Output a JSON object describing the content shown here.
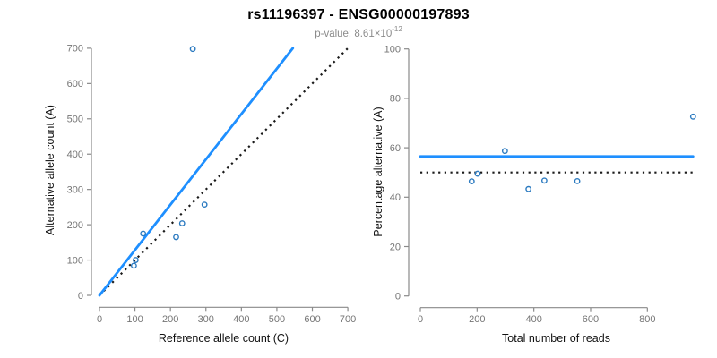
{
  "header": {
    "title": "rs11196397 - ENSG00000197893",
    "subtitle_prefix": "p-value: 8.61×10",
    "subtitle_exponent": "-12"
  },
  "colors": {
    "fit_line": "#1e8fff",
    "point": "#2b7ac0",
    "null_line": "#1a1a1a",
    "axis": "#8a8a8a",
    "tick_label": "#757575",
    "axis_title": "#111111",
    "subtitle": "#8a8a8a"
  },
  "chart_data": [
    {
      "type": "scatter",
      "panel": "allele-counts",
      "xlabel": "Reference allele count (C)",
      "ylabel": "Alternative allele count (A)",
      "xlim": [
        0,
        700
      ],
      "ylim": [
        0,
        700
      ],
      "xticks": [
        0,
        100,
        200,
        300,
        400,
        500,
        600,
        700
      ],
      "yticks": [
        0,
        100,
        200,
        300,
        400,
        500,
        600,
        700
      ],
      "grid": false,
      "legend": "none",
      "points": [
        [
          97,
          84
        ],
        [
          102,
          100
        ],
        [
          123,
          175
        ],
        [
          216,
          165
        ],
        [
          233,
          204
        ],
        [
          296,
          257
        ],
        [
          263,
          698
        ]
      ],
      "lines": [
        {
          "name": "identity-line",
          "style": "dotted",
          "x": [
            0,
            700
          ],
          "y": [
            0,
            700
          ]
        },
        {
          "name": "fit-line",
          "style": "solid",
          "x": [
            0,
            545
          ],
          "y": [
            0,
            700
          ]
        }
      ]
    },
    {
      "type": "scatter",
      "panel": "percentage-alternative",
      "xlabel": "Total number of reads",
      "ylabel": "Percentage alternative (A)",
      "xlim": [
        0,
        961
      ],
      "ylim": [
        0,
        100
      ],
      "xticks": [
        0,
        200,
        400,
        600,
        800
      ],
      "yticks": [
        0,
        20,
        40,
        60,
        80,
        100
      ],
      "grid": false,
      "legend": "none",
      "points": [
        [
          181,
          46.4
        ],
        [
          202,
          49.5
        ],
        [
          298,
          58.7
        ],
        [
          381,
          43.3
        ],
        [
          437,
          46.7
        ],
        [
          553,
          46.5
        ],
        [
          961,
          72.6
        ]
      ],
      "lines": [
        {
          "name": "expected-line",
          "style": "dotted",
          "x": [
            0,
            961
          ],
          "y": [
            50,
            50
          ]
        },
        {
          "name": "fit-line",
          "style": "solid",
          "x": [
            0,
            961
          ],
          "y": [
            56.5,
            56.5
          ]
        }
      ]
    }
  ]
}
